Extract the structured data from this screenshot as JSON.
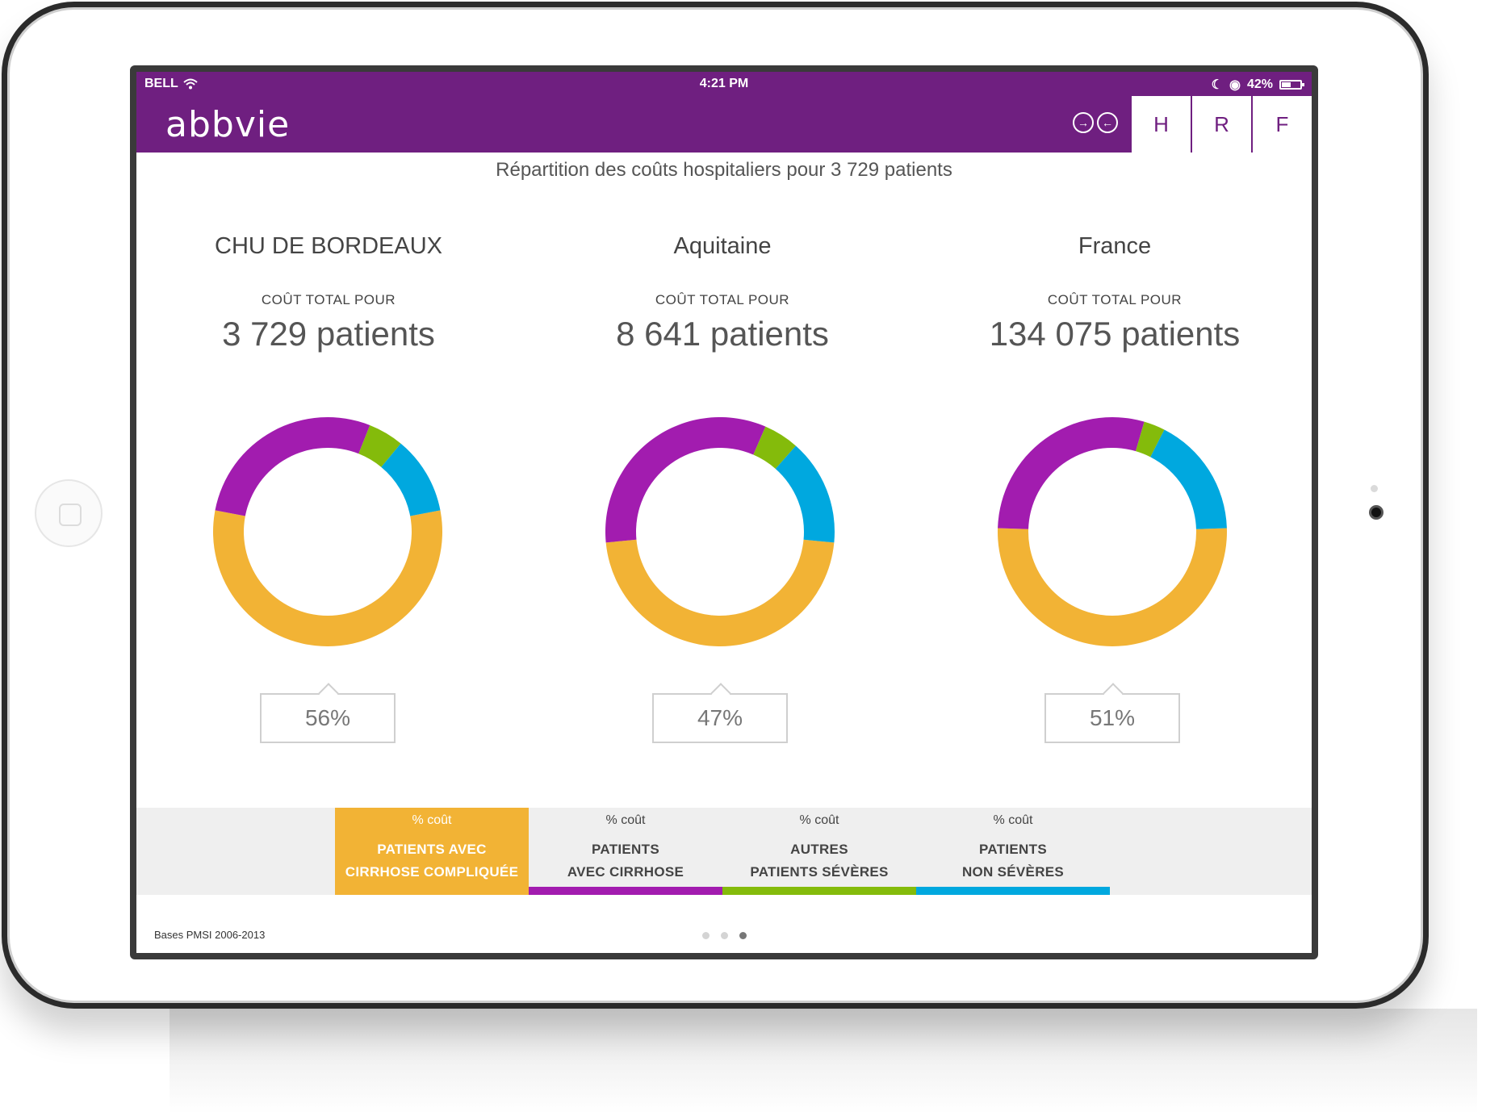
{
  "status_bar": {
    "carrier": "BELL",
    "time": "4:21 PM",
    "battery": "42%"
  },
  "header": {
    "logo": "abbvie",
    "tabs": [
      "H",
      "R",
      "F"
    ],
    "arrows": [
      "→",
      "←"
    ]
  },
  "page": {
    "title": "Répartition des coûts hospitaliers pour 3 729 patients"
  },
  "regions": [
    {
      "name": "CHU DE BORDEAUX",
      "label": "COÛT TOTAL POUR",
      "count": "3 729 patients",
      "value": "56%"
    },
    {
      "name": "Aquitaine",
      "label": "COÛT TOTAL POUR",
      "count": "8 641 patients",
      "value": "47%"
    },
    {
      "name": "France",
      "label": "COÛT TOTAL POUR",
      "count": "134 075 patients",
      "value": "51%"
    }
  ],
  "colors": {
    "cirrhose_compliquee": "#f2b335",
    "cirrhose": "#a21caf",
    "autres_severes": "#84bb0b",
    "non_severes": "#00a8df",
    "brand": "#6f1f80"
  },
  "chart_data": [
    {
      "type": "pie",
      "categories": [
        "Patients avec cirrhose compliquée",
        "Patients avec cirrhose",
        "Autres patients sévères",
        "Patients non sévères"
      ],
      "values": [
        56,
        28,
        5,
        11
      ]
    },
    {
      "type": "pie",
      "categories": [
        "Patients avec cirrhose compliquée",
        "Patients avec cirrhose",
        "Autres patients sévères",
        "Patients non sévères"
      ],
      "values": [
        47,
        33,
        5,
        15
      ]
    },
    {
      "type": "pie",
      "categories": [
        "Patients avec cirrhose compliquée",
        "Patients avec cirrhose",
        "Autres patients sévères",
        "Patients non sévères"
      ],
      "values": [
        51,
        29,
        3,
        17
      ]
    }
  ],
  "legend": [
    {
      "pct": "% coût",
      "line1": "PATIENTS AVEC",
      "line2": "CIRRHOSE COMPLIQUÉE",
      "active": true
    },
    {
      "pct": "% coût",
      "line1": "PATIENTS",
      "line2": "AVEC CIRRHOSE",
      "active": false
    },
    {
      "pct": "% coût",
      "line1": "AUTRES",
      "line2": "PATIENTS SÉVÈRES",
      "active": false
    },
    {
      "pct": "% coût",
      "line1": "PATIENTS",
      "line2": "NON SÉVÈRES",
      "active": false
    }
  ],
  "footer": {
    "source": "Bases PMSI 2006-2013",
    "pages": 3,
    "current_page": 3
  }
}
